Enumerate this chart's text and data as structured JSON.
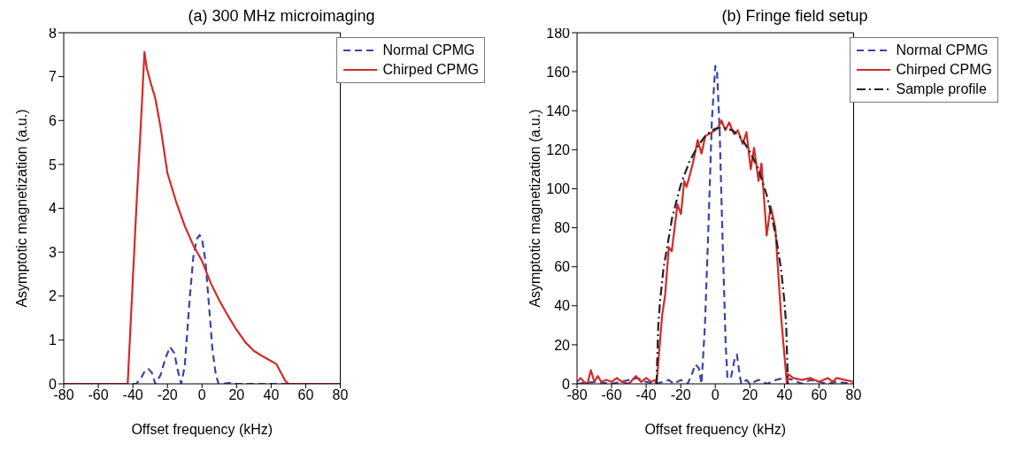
{
  "chart_data": [
    {
      "type": "line",
      "title": "(a) 300 MHz microimaging",
      "xlabel": "Offset frequency (kHz)",
      "ylabel": "Asymptotic magnetization (a.u.)",
      "xlim": [
        -80,
        80
      ],
      "xticks": [
        -80,
        -60,
        -40,
        -20,
        0,
        20,
        40,
        60,
        80
      ],
      "ylim": [
        0,
        8
      ],
      "yticks": [
        0,
        1,
        2,
        3,
        4,
        5,
        6,
        7,
        8
      ],
      "legend": "top right",
      "marker": "none",
      "series": [
        {
          "name": "Normal CPMG",
          "color": "#3a45a6",
          "line_style": "dashed",
          "x": [
            -80,
            -40,
            -38,
            -35,
            -33,
            -31,
            -29,
            -27,
            -24,
            -21,
            -18.5,
            -16,
            -14,
            -12,
            -10,
            -7,
            -5,
            -3,
            -1.4,
            0,
            2,
            4,
            6,
            8,
            9.6,
            12,
            16,
            20,
            80
          ],
          "values": [
            0,
            0,
            0,
            0.15,
            0.3,
            0.34,
            0.25,
            0,
            0.2,
            0.6,
            0.84,
            0.7,
            0.3,
            0,
            0.4,
            2.0,
            2.9,
            3.3,
            3.39,
            3.3,
            2.8,
            1.8,
            0.8,
            0.2,
            0,
            0,
            0.02,
            0,
            0
          ]
        },
        {
          "name": "Chirped CPMG",
          "color": "#d42a2a",
          "line_style": "solid",
          "x": [
            -80,
            -43,
            -38,
            -35,
            -33.3,
            -32,
            -30,
            -27,
            -24,
            -20,
            -15,
            -10,
            -5,
            0,
            5,
            10,
            15,
            20,
            25,
            30,
            35,
            40,
            43,
            45,
            48,
            50,
            80
          ],
          "values": [
            0,
            0,
            4.0,
            6.2,
            7.56,
            7.2,
            6.9,
            6.5,
            5.85,
            4.8,
            4.15,
            3.6,
            3.15,
            2.8,
            2.3,
            1.9,
            1.55,
            1.23,
            0.95,
            0.75,
            0.63,
            0.52,
            0.45,
            0.3,
            0.08,
            0,
            0
          ]
        }
      ]
    },
    {
      "type": "line",
      "title": "(b) Fringe field setup",
      "xlabel": "Offset frequency (kHz)",
      "ylabel": "Asymptotic magnetization (a.u.)",
      "xlim": [
        -80,
        80
      ],
      "xticks": [
        -80,
        -60,
        -40,
        -20,
        0,
        20,
        40,
        60,
        80
      ],
      "ylim": [
        0,
        180
      ],
      "yticks": [
        0,
        20,
        40,
        60,
        80,
        100,
        120,
        140,
        160,
        180
      ],
      "legend": "top right",
      "marker": "none",
      "series": [
        {
          "name": "Normal CPMG",
          "color": "#3a45a6",
          "line_style": "dashed",
          "x": [
            -80,
            -70,
            -60,
            -50,
            -45,
            -40,
            -35,
            -30,
            -27,
            -24,
            -20,
            -16,
            -14,
            -11.5,
            -9.5,
            -8,
            -6,
            -4,
            -2,
            0,
            1,
            2.5,
            4,
            6,
            7,
            9,
            11,
            12.5,
            14,
            15,
            18,
            20,
            25,
            30,
            35,
            40,
            45,
            50,
            55,
            60,
            65,
            70,
            80
          ],
          "values": [
            0,
            1,
            0,
            2,
            3,
            1,
            0,
            1,
            2,
            0,
            2,
            0,
            4,
            10,
            8,
            0,
            30,
            80,
            135,
            163,
            160,
            130,
            80,
            20,
            3,
            3,
            12,
            15,
            5,
            0,
            2,
            0,
            2,
            0,
            2,
            3,
            2,
            0,
            2,
            1,
            0,
            1,
            0
          ]
        },
        {
          "name": "Chirped CPMG",
          "color": "#d42a2a",
          "line_style": "solid",
          "x": [
            -80,
            -78,
            -76,
            -74,
            -72,
            -70,
            -68,
            -66,
            -63,
            -60,
            -57,
            -54,
            -50,
            -46,
            -43,
            -40,
            -37,
            -35,
            -34,
            -30.8,
            -29.1,
            -26.9,
            -25.2,
            -21.9,
            -19.9,
            -18,
            -16.6,
            -13,
            -10.2,
            -8,
            -5.8,
            -1.9,
            1.4,
            3.6,
            5.8,
            8,
            10.8,
            13,
            15.8,
            18,
            20.5,
            22.4,
            25,
            26.7,
            29.7,
            32,
            34.7,
            38,
            41.4,
            42,
            45,
            50,
            55,
            60,
            65,
            68,
            70,
            75,
            80
          ],
          "values": [
            1,
            3,
            1,
            0,
            7,
            1,
            4,
            1,
            2,
            1,
            3,
            1,
            0,
            4,
            1,
            3,
            1,
            2,
            0,
            35,
            45,
            70,
            68,
            92,
            87,
            104,
            101,
            113,
            125,
            118,
            127,
            129,
            131,
            135,
            130,
            134,
            128,
            130,
            123,
            129,
            110,
            121,
            104,
            113,
            76,
            91,
            80,
            35,
            0,
            5,
            3,
            2,
            3,
            1,
            3,
            1,
            3,
            2,
            1
          ]
        },
        {
          "name": "Sample profile",
          "color": "#222222",
          "line_style": "dashdot",
          "x": [
            -34,
            -33,
            -32,
            -30,
            -25,
            -20,
            -15,
            -10,
            -5,
            0,
            4,
            10,
            15,
            20,
            25,
            30,
            35,
            38,
            40,
            41,
            42
          ],
          "values": [
            0,
            30,
            42,
            59,
            85,
            102,
            114,
            122,
            128,
            130.8,
            131.5,
            129.9,
            126,
            119,
            110,
            96,
            76,
            59,
            42,
            30,
            0
          ]
        }
      ]
    }
  ]
}
